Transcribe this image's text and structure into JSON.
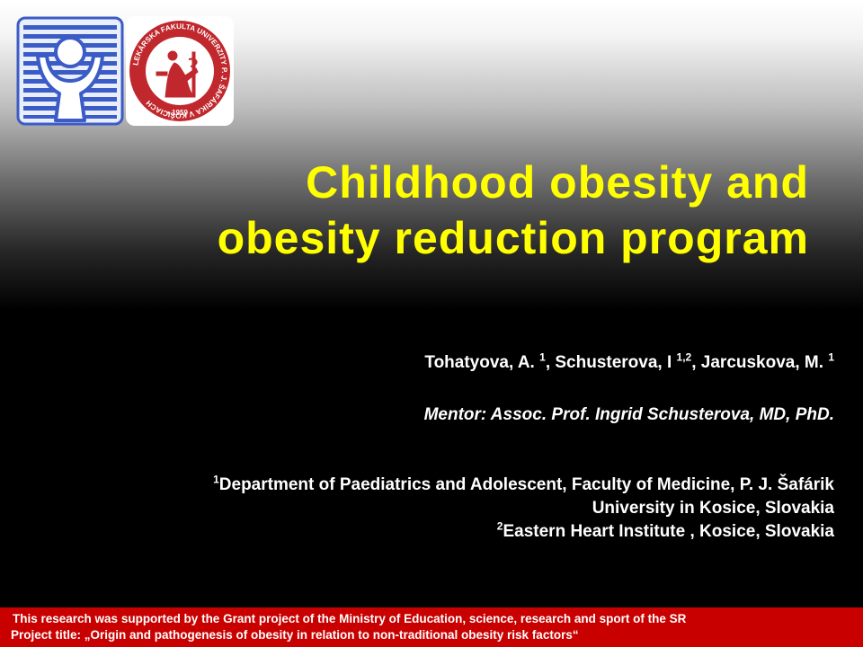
{
  "logos": {
    "left": {
      "icon": "child-arms-raised-logo",
      "colors": {
        "frame": "#4a6fd1",
        "stripes": "#3b5bc6",
        "figure": "#ffffff"
      }
    },
    "right": {
      "icon": "university-seal-logo",
      "ring_text": "LEKÁRSKA FAKULTA UNIVERZITY P. J. ŠAFÁRIKA V KOŠICIACH",
      "year": "• 1959 •",
      "colors": {
        "ring": "#c0282d",
        "inner": "#ffffff"
      }
    }
  },
  "title": {
    "line1": "Childhood obesity and",
    "line2": "obesity reduction program",
    "color": "#ffff00"
  },
  "authors": {
    "a1": "Tohatyova, A. ",
    "a1_sup": "1",
    "a2": ", Schusterova, I ",
    "a2_sup": "1,2",
    "a3": ", Jarcuskova, M. ",
    "a3_sup": "1"
  },
  "mentor": "Mentor:  Assoc. Prof. Ingrid Schusterova, MD, PhD.",
  "affiliations": {
    "a1_sup": "1",
    "a1_line1": "Department of Paediatrics and Adolescent, Faculty of Medicine, P. J. Šafárik",
    "a1_line2": "University in Kosice,  Slovakia",
    "a2_sup": "2",
    "a2_line": "Eastern Heart Institute , Kosice, Slovakia"
  },
  "footer": {
    "line1": "This  research was supported by the Grant project of the Ministry of Education, science, research and sport of the SR",
    "line2": "Project title: „Origin and pathogenesis of obesity in relation to non-traditional obesity risk factors“",
    "background": "#c80000"
  }
}
